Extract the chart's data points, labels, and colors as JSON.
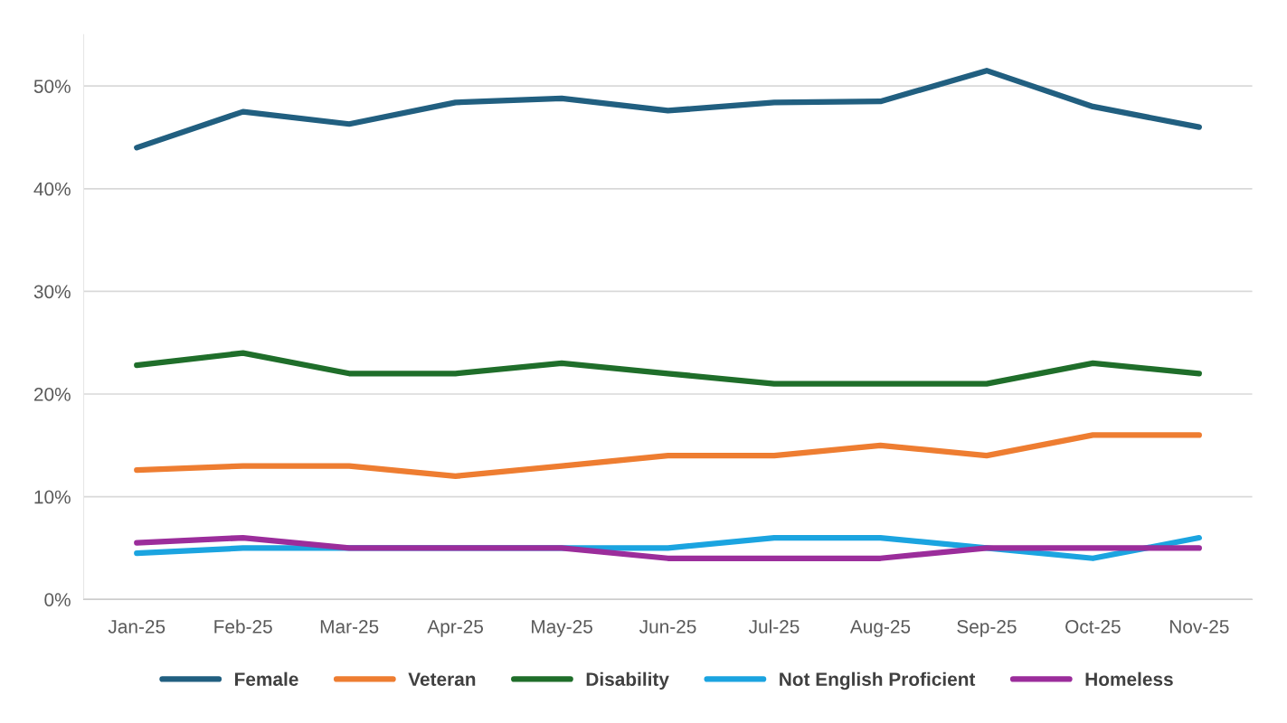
{
  "chart_data": {
    "type": "line",
    "categories": [
      "Jan-25",
      "Feb-25",
      "Mar-25",
      "Apr-25",
      "May-25",
      "Jun-25",
      "Jul-25",
      "Aug-25",
      "Sep-25",
      "Oct-25",
      "Nov-25"
    ],
    "series": [
      {
        "name": "Female",
        "color": "#215f80",
        "values": [
          44.0,
          47.5,
          46.3,
          48.4,
          48.8,
          47.6,
          48.4,
          48.5,
          51.5,
          48.0,
          46.0
        ]
      },
      {
        "name": "Veteran",
        "color": "#ee7d31",
        "values": [
          12.6,
          13,
          13,
          12,
          13,
          14,
          14,
          15,
          14,
          16,
          16
        ]
      },
      {
        "name": "Disability",
        "color": "#1f6e2a",
        "values": [
          22.8,
          24,
          22,
          22,
          23,
          22,
          21,
          21,
          21,
          23,
          22
        ]
      },
      {
        "name": "Not English Proficient",
        "color": "#1ba4e0",
        "values": [
          4.5,
          5,
          5,
          5,
          5,
          5,
          6,
          6,
          5,
          4,
          6
        ]
      },
      {
        "name": "Homeless",
        "color": "#9b2d9b",
        "values": [
          5.5,
          6,
          5,
          5,
          5,
          4,
          4,
          4,
          5,
          5,
          5
        ]
      }
    ],
    "ylim": [
      0,
      55
    ],
    "yticks": [
      {
        "value": 0,
        "label": "0%"
      },
      {
        "value": 10,
        "label": "10%"
      },
      {
        "value": 20,
        "label": "20%"
      },
      {
        "value": 30,
        "label": "30%"
      },
      {
        "value": 40,
        "label": "40%"
      },
      {
        "value": 50,
        "label": "50%"
      }
    ],
    "grid": "y",
    "legend": "bottom",
    "marker": "none",
    "line_style": "solid"
  }
}
